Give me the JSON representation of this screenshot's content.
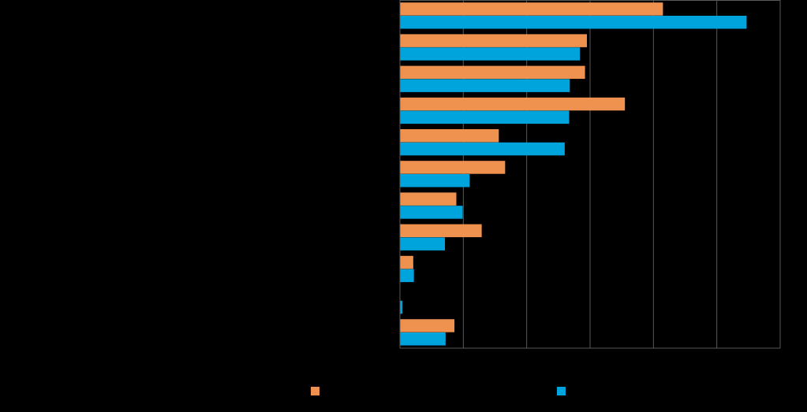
{
  "chart_data": {
    "type": "bar",
    "orientation": "horizontal",
    "categories": [
      "",
      "",
      "",
      "",
      "",
      "",
      "",
      "",
      "",
      "",
      ""
    ],
    "series": [
      {
        "color": "#F0924F",
        "values": [
          41.5,
          29.5,
          29.2,
          35.5,
          15.6,
          16.6,
          8.9,
          12.9,
          2.1,
          0,
          8.6
        ]
      },
      {
        "color": "#00A4DC",
        "values": [
          54.7,
          28.4,
          26.8,
          26.7,
          26.0,
          11.0,
          9.9,
          7.1,
          2.2,
          0.4,
          7.2
        ]
      }
    ],
    "xlim": [
      0,
      60
    ],
    "x_gridlines": [
      10,
      20,
      30,
      40,
      50,
      60
    ],
    "grid": true,
    "legend_position": "bottom",
    "background": "#000000",
    "gridline_color": "#595959"
  }
}
